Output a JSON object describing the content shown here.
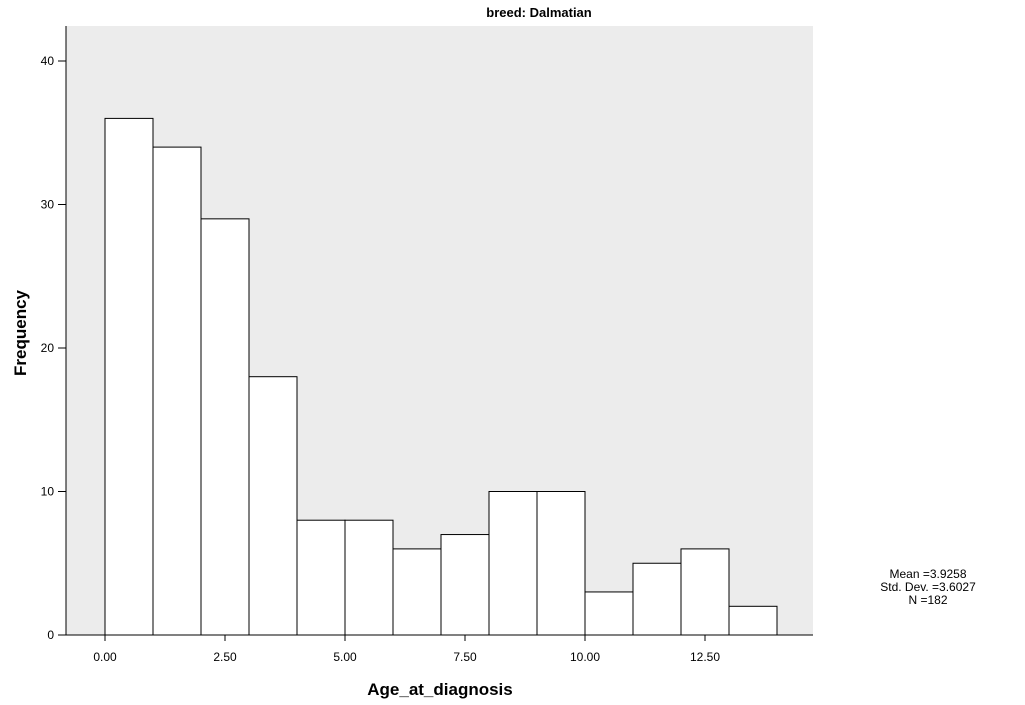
{
  "chart_data": {
    "type": "bar",
    "title": "breed: Dalmatian",
    "xlabel": "Age_at_diagnosis",
    "ylabel": "Frequency",
    "bin_width": 1,
    "x_tick_labels": [
      "0.00",
      "2.50",
      "5.00",
      "7.50",
      "10.00",
      "12.50"
    ],
    "y_tick_labels": [
      "0",
      "10",
      "20",
      "30",
      "40"
    ],
    "xlim": [
      -1,
      15
    ],
    "ylim": [
      0,
      42
    ],
    "bins": [
      {
        "start": 0,
        "value": 36
      },
      {
        "start": 1,
        "value": 34
      },
      {
        "start": 2,
        "value": 29
      },
      {
        "start": 3,
        "value": 18
      },
      {
        "start": 4,
        "value": 8
      },
      {
        "start": 5,
        "value": 8
      },
      {
        "start": 6,
        "value": 6
      },
      {
        "start": 7,
        "value": 7
      },
      {
        "start": 8,
        "value": 10
      },
      {
        "start": 9,
        "value": 10
      },
      {
        "start": 10,
        "value": 3
      },
      {
        "start": 11,
        "value": 5
      },
      {
        "start": 12,
        "value": 6
      },
      {
        "start": 13,
        "value": 2
      }
    ],
    "plot_background": "#ececec",
    "bar_fill": "#ffffff",
    "bar_stroke": "#000000",
    "grid": false
  },
  "stats": {
    "mean": "Mean =3.9258",
    "std": "Std. Dev. =3.6027",
    "n": "N =182"
  }
}
